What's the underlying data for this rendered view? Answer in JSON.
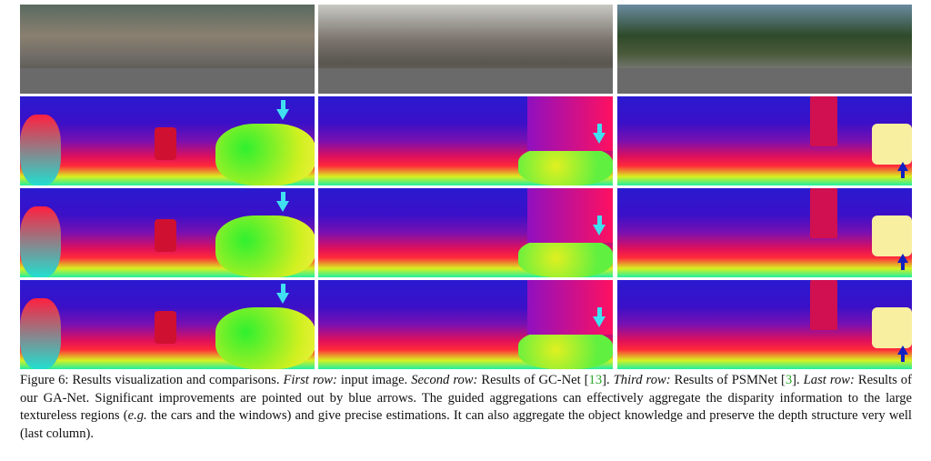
{
  "figure": {
    "caption": {
      "segments": [
        "Figure 6: Results visualization and comparisons. ",
        "First row:",
        " input image. ",
        "Second row:",
        " Results of GC-Net [",
        "13",
        "]. ",
        "Third row:",
        " Results of PSMNet [",
        "3",
        "]. ",
        "Last row:",
        " Results of our GA-Net. Significant improvements are pointed out by blue arrows. The guided aggregations can effectively aggregate the disparity information to the large textureless regions (",
        "e.g.",
        " the cars and the windows) and give precise estimations. It can also aggregate the object knowledge and preserve the depth structure very well (last column)."
      ]
    }
  }
}
